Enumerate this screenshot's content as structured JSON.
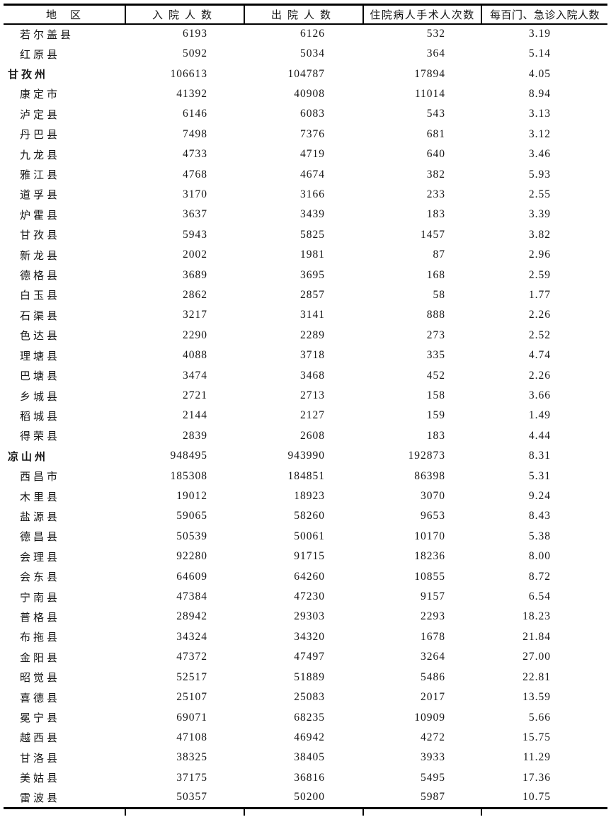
{
  "page": {
    "background_color": "#ffffff",
    "line_color": "#000000",
    "text_color": "#1c1c1c"
  },
  "table": {
    "columns": [
      {
        "key": "region",
        "label": "地　区"
      },
      {
        "key": "admissions",
        "label": "入院人数"
      },
      {
        "key": "discharges",
        "label": "出院人数"
      },
      {
        "key": "surgeries",
        "label": "住院病人手术人次数"
      },
      {
        "key": "per100",
        "label": "每百门、急诊入院人数"
      }
    ],
    "rows": [
      {
        "region": "若尔盖县",
        "level": "county",
        "admissions": "6193",
        "discharges": "6126",
        "surgeries": "532",
        "per100": "3.19"
      },
      {
        "region": "红原县",
        "level": "county",
        "admissions": "5092",
        "discharges": "5034",
        "surgeries": "364",
        "per100": "5.14"
      },
      {
        "region": "甘孜州",
        "level": "prefecture",
        "admissions": "106613",
        "discharges": "104787",
        "surgeries": "17894",
        "per100": "4.05"
      },
      {
        "region": "康定市",
        "level": "county",
        "admissions": "41392",
        "discharges": "40908",
        "surgeries": "11014",
        "per100": "8.94"
      },
      {
        "region": "泸定县",
        "level": "county",
        "admissions": "6146",
        "discharges": "6083",
        "surgeries": "543",
        "per100": "3.13"
      },
      {
        "region": "丹巴县",
        "level": "county",
        "admissions": "7498",
        "discharges": "7376",
        "surgeries": "681",
        "per100": "3.12"
      },
      {
        "region": "九龙县",
        "level": "county",
        "admissions": "4733",
        "discharges": "4719",
        "surgeries": "640",
        "per100": "3.46"
      },
      {
        "region": "雅江县",
        "level": "county",
        "admissions": "4768",
        "discharges": "4674",
        "surgeries": "382",
        "per100": "5.93"
      },
      {
        "region": "道孚县",
        "level": "county",
        "admissions": "3170",
        "discharges": "3166",
        "surgeries": "233",
        "per100": "2.55"
      },
      {
        "region": "炉霍县",
        "level": "county",
        "admissions": "3637",
        "discharges": "3439",
        "surgeries": "183",
        "per100": "3.39"
      },
      {
        "region": "甘孜县",
        "level": "county",
        "admissions": "5943",
        "discharges": "5825",
        "surgeries": "1457",
        "per100": "3.82"
      },
      {
        "region": "新龙县",
        "level": "county",
        "admissions": "2002",
        "discharges": "1981",
        "surgeries": "87",
        "per100": "2.96"
      },
      {
        "region": "德格县",
        "level": "county",
        "admissions": "3689",
        "discharges": "3695",
        "surgeries": "168",
        "per100": "2.59"
      },
      {
        "region": "白玉县",
        "level": "county",
        "admissions": "2862",
        "discharges": "2857",
        "surgeries": "58",
        "per100": "1.77"
      },
      {
        "region": "石渠县",
        "level": "county",
        "admissions": "3217",
        "discharges": "3141",
        "surgeries": "888",
        "per100": "2.26"
      },
      {
        "region": "色达县",
        "level": "county",
        "admissions": "2290",
        "discharges": "2289",
        "surgeries": "273",
        "per100": "2.52"
      },
      {
        "region": "理塘县",
        "level": "county",
        "admissions": "4088",
        "discharges": "3718",
        "surgeries": "335",
        "per100": "4.74"
      },
      {
        "region": "巴塘县",
        "level": "county",
        "admissions": "3474",
        "discharges": "3468",
        "surgeries": "452",
        "per100": "2.26"
      },
      {
        "region": "乡城县",
        "level": "county",
        "admissions": "2721",
        "discharges": "2713",
        "surgeries": "158",
        "per100": "3.66"
      },
      {
        "region": "稻城县",
        "level": "county",
        "admissions": "2144",
        "discharges": "2127",
        "surgeries": "159",
        "per100": "1.49"
      },
      {
        "region": "得荣县",
        "level": "county",
        "admissions": "2839",
        "discharges": "2608",
        "surgeries": "183",
        "per100": "4.44"
      },
      {
        "region": "凉山州",
        "level": "prefecture",
        "admissions": "948495",
        "discharges": "943990",
        "surgeries": "192873",
        "per100": "8.31"
      },
      {
        "region": "西昌市",
        "level": "county",
        "admissions": "185308",
        "discharges": "184851",
        "surgeries": "86398",
        "per100": "5.31"
      },
      {
        "region": "木里县",
        "level": "county",
        "admissions": "19012",
        "discharges": "18923",
        "surgeries": "3070",
        "per100": "9.24"
      },
      {
        "region": "盐源县",
        "level": "county",
        "admissions": "59065",
        "discharges": "58260",
        "surgeries": "9653",
        "per100": "8.43"
      },
      {
        "region": "德昌县",
        "level": "county",
        "admissions": "50539",
        "discharges": "50061",
        "surgeries": "10170",
        "per100": "5.38"
      },
      {
        "region": "会理县",
        "level": "county",
        "admissions": "92280",
        "discharges": "91715",
        "surgeries": "18236",
        "per100": "8.00"
      },
      {
        "region": "会东县",
        "level": "county",
        "admissions": "64609",
        "discharges": "64260",
        "surgeries": "10855",
        "per100": "8.72"
      },
      {
        "region": "宁南县",
        "level": "county",
        "admissions": "47384",
        "discharges": "47230",
        "surgeries": "9157",
        "per100": "6.54"
      },
      {
        "region": "普格县",
        "level": "county",
        "admissions": "28942",
        "discharges": "29303",
        "surgeries": "2293",
        "per100": "18.23"
      },
      {
        "region": "布拖县",
        "level": "county",
        "admissions": "34324",
        "discharges": "34320",
        "surgeries": "1678",
        "per100": "21.84"
      },
      {
        "region": "金阳县",
        "level": "county",
        "admissions": "47372",
        "discharges": "47497",
        "surgeries": "3264",
        "per100": "27.00"
      },
      {
        "region": "昭觉县",
        "level": "county",
        "admissions": "52517",
        "discharges": "51889",
        "surgeries": "5486",
        "per100": "22.81"
      },
      {
        "region": "喜德县",
        "level": "county",
        "admissions": "25107",
        "discharges": "25083",
        "surgeries": "2017",
        "per100": "13.59"
      },
      {
        "region": "冕宁县",
        "level": "county",
        "admissions": "69071",
        "discharges": "68235",
        "surgeries": "10909",
        "per100": "5.66"
      },
      {
        "region": "越西县",
        "level": "county",
        "admissions": "47108",
        "discharges": "46942",
        "surgeries": "4272",
        "per100": "15.75"
      },
      {
        "region": "甘洛县",
        "level": "county",
        "admissions": "38325",
        "discharges": "38405",
        "surgeries": "3933",
        "per100": "11.29"
      },
      {
        "region": "美姑县",
        "level": "county",
        "admissions": "37175",
        "discharges": "36816",
        "surgeries": "5495",
        "per100": "17.36"
      },
      {
        "region": "雷波县",
        "level": "county",
        "admissions": "50357",
        "discharges": "50200",
        "surgeries": "5987",
        "per100": "10.75"
      }
    ]
  }
}
